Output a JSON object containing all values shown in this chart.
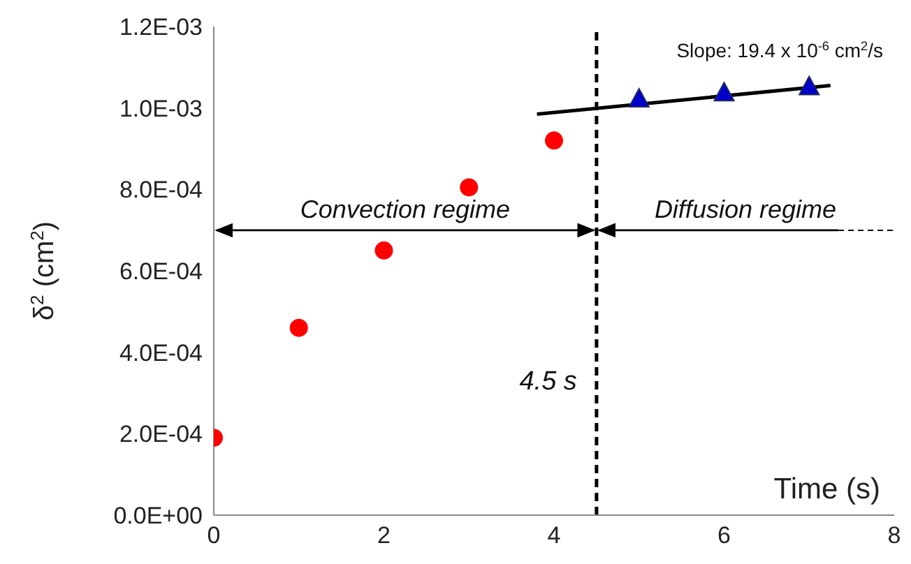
{
  "chart_data": {
    "type": "scatter",
    "xlabel": "Time (s)",
    "ylabel": "δ$^{2}$ (cm$^{2}$)",
    "xlim": [
      0,
      8
    ],
    "xticks": [
      0,
      2,
      4,
      6,
      8
    ],
    "ylim": [
      0,
      0.0012
    ],
    "yticks": [
      {
        "value": 0,
        "label": "0.0E+00"
      },
      {
        "value": 0.0002,
        "label": "2.0E-04"
      },
      {
        "value": 0.0004,
        "label": "4.0E-04"
      },
      {
        "value": 0.0006,
        "label": "6.0E-04"
      },
      {
        "value": 0.0008,
        "label": "8.0E-04"
      },
      {
        "value": 0.001,
        "label": "1.0E-03"
      },
      {
        "value": 0.0012,
        "label": "1.2E-03"
      }
    ],
    "series": [
      {
        "marker": "circle",
        "color": "#ff0000",
        "x": [
          0,
          1,
          2,
          3,
          4
        ],
        "values": [
          0.00019,
          0.00046,
          0.00065,
          0.000805,
          0.00092
        ]
      },
      {
        "marker": "triangle",
        "color": "#0000cc",
        "x": [
          5,
          6,
          7
        ],
        "values": [
          0.00102,
          0.001035,
          0.00105
        ]
      },
      {
        "type": "line",
        "line_style": "solid",
        "color": "#000000",
        "x": [
          3.8,
          7.25
        ],
        "values": [
          0.000985,
          0.001055
        ]
      }
    ],
    "ref_lines": [
      {
        "axis": "x",
        "value": 4.5,
        "label": "4.5 s",
        "line_style": "dashed",
        "color": "#000000"
      }
    ],
    "annotations": [
      "Slope: 19.4 x 10$^{-6}$ cm$^{2}$/s",
      "Convection regime",
      {
        "text": "Diffusion regime",
        "x": 4.5
      }
    ]
  }
}
